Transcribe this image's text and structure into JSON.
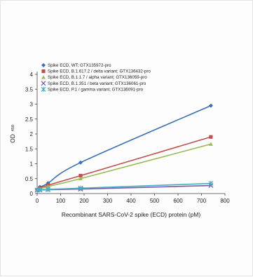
{
  "chart_data": {
    "type": "line",
    "title": "",
    "xlabel": "Recombinant SARS-CoV-2 spike (ECD) protein (pM)",
    "ylabel_main": "OD",
    "ylabel_sub": "450",
    "xlim": [
      0,
      800
    ],
    "ylim": [
      0,
      4
    ],
    "xticks": [
      "0",
      "100",
      "200",
      "300",
      "400",
      "500",
      "600",
      "700",
      "800"
    ],
    "yticks": [
      "0",
      "0.5",
      "1",
      "1.5",
      "2",
      "2.5",
      "3",
      "3.5",
      "4"
    ],
    "grid": false,
    "legend_position": "top-left",
    "series": [
      {
        "name": "Spike ECD, WT; GTX135972-pro",
        "color": "#3a6fb5",
        "marker": "diamond",
        "x": [
          0,
          11.6,
          46.3,
          185,
          740
        ],
        "y": [
          0.13,
          0.22,
          0.35,
          1.04,
          2.95
        ]
      },
      {
        "name": "Spike ECD, B.1.617.2 / delta variant; GTX136432-pro",
        "color": "#c0504d",
        "marker": "square",
        "x": [
          0,
          11.6,
          46.3,
          185,
          740
        ],
        "y": [
          0.12,
          0.18,
          0.28,
          0.6,
          1.9
        ]
      },
      {
        "name": "Spike ECD, B.1.1.7 / alpha variant; GTX136059-pro",
        "color": "#9bbb59",
        "marker": "triangle",
        "x": [
          0,
          11.6,
          46.3,
          185,
          740
        ],
        "y": [
          0.12,
          0.16,
          0.24,
          0.5,
          1.66
        ]
      },
      {
        "name": "Spike ECD, B.1.351 / beta variant; GTX136061-pro",
        "color": "#7a5ba8",
        "marker": "x",
        "x": [
          0,
          11.6,
          46.3,
          185,
          740
        ],
        "y": [
          0.11,
          0.12,
          0.13,
          0.15,
          0.27
        ]
      },
      {
        "name": "Spike ECD, P.1 / gamma variant; GTX136091-pro",
        "color": "#4bacc6",
        "marker": "star",
        "x": [
          0,
          11.6,
          46.3,
          185,
          740
        ],
        "y": [
          0.12,
          0.13,
          0.14,
          0.18,
          0.34
        ]
      }
    ]
  }
}
